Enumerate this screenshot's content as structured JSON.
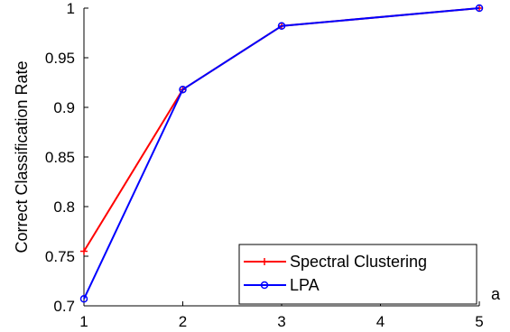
{
  "chart_data": {
    "type": "line",
    "title": "",
    "xlabel": "a",
    "ylabel": "Correct Classification Rate",
    "xlim": [
      1,
      5
    ],
    "ylim": [
      0.7,
      1
    ],
    "x_ticks": [
      "1",
      "2",
      "3",
      "4",
      "5"
    ],
    "y_ticks": [
      "0.7",
      "0.75",
      "0.8",
      "0.85",
      "0.9",
      "0.95",
      "1"
    ],
    "grid": false,
    "legend_position": "bottom-right",
    "x": [
      1,
      2,
      3,
      4,
      5
    ],
    "series": [
      {
        "name": "Spectral Clustering",
        "color": "#ff0000",
        "marker": "plus",
        "x": [
          1,
          2,
          3,
          5
        ],
        "values": [
          0.755,
          0.918,
          0.982,
          1.0
        ]
      },
      {
        "name": "LPA",
        "color": "#0000ff",
        "marker": "circle",
        "x": [
          1,
          2,
          3,
          5
        ],
        "values": [
          0.707,
          0.918,
          0.982,
          1.0
        ]
      }
    ]
  }
}
